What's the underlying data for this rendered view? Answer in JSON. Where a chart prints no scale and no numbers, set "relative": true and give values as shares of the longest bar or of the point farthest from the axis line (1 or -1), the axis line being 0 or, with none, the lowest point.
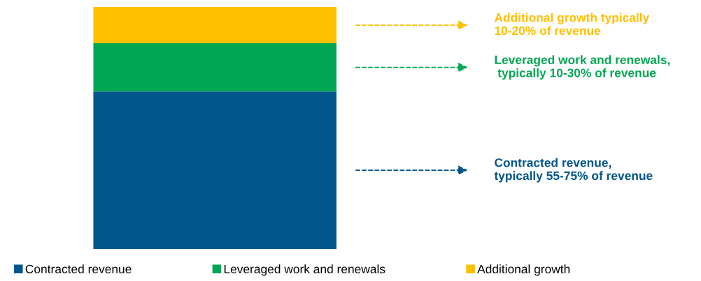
{
  "chart_data": {
    "type": "bar",
    "stacked": true,
    "relative": true,
    "categories": [
      null
    ],
    "series": [
      {
        "name": "Contracted revenue",
        "color": "#00558c",
        "values": [
          0.651
        ]
      },
      {
        "name": "Leveraged work and renewals",
        "color": "#00a651",
        "values": [
          0.199
        ]
      },
      {
        "name": "Additional growth",
        "color": "#ffc000",
        "values": [
          0.15
        ]
      }
    ],
    "annotations": [
      "Contracted revenue,\ntypically 55-75% of revenue",
      "Leveraged work and renewals,\n typically 10-30% of revenue",
      "Additional growth typically\n10-20% of revenue"
    ],
    "legend": "bottom"
  }
}
